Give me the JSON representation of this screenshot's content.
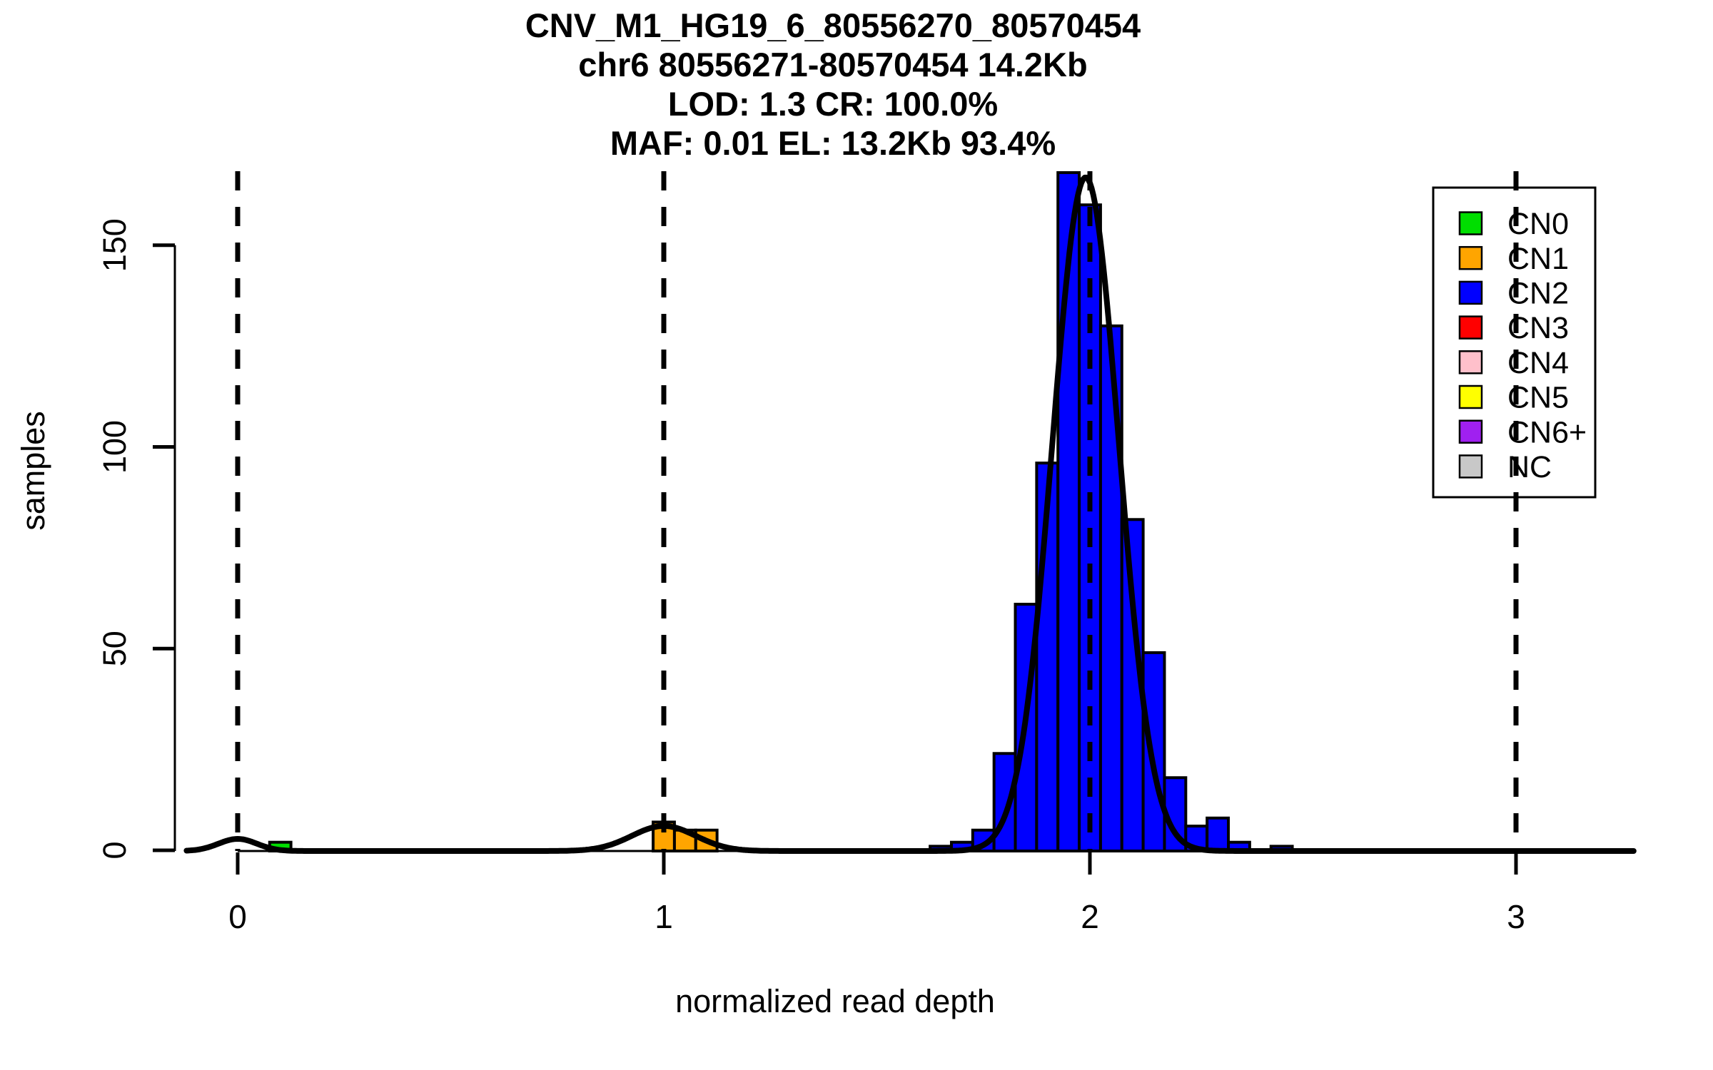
{
  "chart_data": {
    "type": "bar",
    "subtype": "histogram-with-density-fit",
    "title_lines": [
      "CNV_M1_HG19_6_80556270_80570454",
      "chr6 80556271-80570454 14.2Kb",
      "LOD: 1.3 CR: 100.0%",
      "MAF: 0.01 EL: 13.2Kb 93.4%"
    ],
    "x_axis": {
      "label": "normalized read depth",
      "ticks": [
        0,
        1,
        2,
        3
      ],
      "range": [
        -0.12,
        3.28
      ]
    },
    "y_axis": {
      "label": "samples",
      "ticks": [
        0,
        50,
        100,
        150
      ],
      "range": [
        0,
        171
      ]
    },
    "grid": false,
    "bin_width": 0.05,
    "series": [
      {
        "name": "CN0",
        "color": "#00DE00",
        "bins": [
          [
            0.1,
            2
          ]
        ]
      },
      {
        "name": "CN1",
        "color": "#FFA500",
        "bins": [
          [
            1.0,
            7
          ],
          [
            1.05,
            5
          ],
          [
            1.1,
            5
          ]
        ]
      },
      {
        "name": "CN2",
        "color": "#0000FF",
        "bins": [
          [
            1.65,
            1
          ],
          [
            1.7,
            2
          ],
          [
            1.75,
            5
          ],
          [
            1.8,
            24
          ],
          [
            1.85,
            61
          ],
          [
            1.9,
            96
          ],
          [
            1.95,
            168
          ],
          [
            2.0,
            160
          ],
          [
            2.05,
            130
          ],
          [
            2.1,
            82
          ],
          [
            2.15,
            49
          ],
          [
            2.2,
            18
          ],
          [
            2.25,
            6
          ],
          [
            2.3,
            8
          ],
          [
            2.35,
            2
          ],
          [
            2.45,
            1
          ]
        ]
      }
    ],
    "fit_curve": {
      "color": "#000000",
      "components": [
        {
          "mean": 0.0,
          "sd": 0.045,
          "height": 3
        },
        {
          "mean": 1.0,
          "sd": 0.075,
          "height": 6.2
        },
        {
          "mean": 1.99,
          "sd": 0.078,
          "height": 167
        }
      ]
    },
    "guide_lines_x": [
      0,
      1,
      2,
      3
    ],
    "legend": {
      "position": "top-right",
      "entries": [
        {
          "label": "CN0",
          "color": "#00DE00"
        },
        {
          "label": "CN1",
          "color": "#FFA500"
        },
        {
          "label": "CN2",
          "color": "#0000FF"
        },
        {
          "label": "CN3",
          "color": "#FF0000"
        },
        {
          "label": "CN4",
          "color": "#FFC0CB"
        },
        {
          "label": "CN5",
          "color": "#FFFF00"
        },
        {
          "label": "CN6+",
          "color": "#A020F0"
        },
        {
          "label": "NC",
          "color": "#C8C8C8"
        }
      ]
    },
    "colors": {
      "background": "#FFFFFF",
      "axis": "#000000",
      "guide_line": "#000000"
    }
  }
}
